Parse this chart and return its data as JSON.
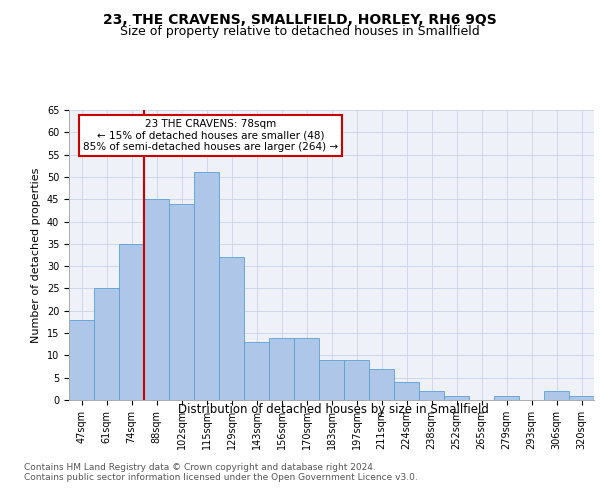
{
  "title": "23, THE CRAVENS, SMALLFIELD, HORLEY, RH6 9QS",
  "subtitle": "Size of property relative to detached houses in Smallfield",
  "xlabel": "Distribution of detached houses by size in Smallfield",
  "ylabel": "Number of detached properties",
  "categories": [
    "47sqm",
    "61sqm",
    "74sqm",
    "88sqm",
    "102sqm",
    "115sqm",
    "129sqm",
    "143sqm",
    "156sqm",
    "170sqm",
    "183sqm",
    "197sqm",
    "211sqm",
    "224sqm",
    "238sqm",
    "252sqm",
    "265sqm",
    "279sqm",
    "293sqm",
    "306sqm",
    "320sqm"
  ],
  "values": [
    18,
    25,
    35,
    45,
    44,
    51,
    32,
    13,
    14,
    14,
    9,
    9,
    7,
    4,
    2,
    1,
    0,
    1,
    0,
    2,
    1
  ],
  "bar_color": "#aec6e8",
  "bar_edgecolor": "#5a9fd4",
  "vline_x_index": 2,
  "vline_color": "#cc0000",
  "annotation_text_line1": "23 THE CRAVENS: 78sqm",
  "annotation_text_line2": "← 15% of detached houses are smaller (48)",
  "annotation_text_line3": "85% of semi-detached houses are larger (264) →",
  "annotation_box_edgecolor": "#cc0000",
  "annotation_box_facecolor": "#ffffff",
  "ylim": [
    0,
    65
  ],
  "yticks": [
    0,
    5,
    10,
    15,
    20,
    25,
    30,
    35,
    40,
    45,
    50,
    55,
    60,
    65
  ],
  "grid_color": "#c8d4e8",
  "background_color": "#eef2f8",
  "footer_line1": "Contains HM Land Registry data © Crown copyright and database right 2024.",
  "footer_line2": "Contains public sector information licensed under the Open Government Licence v3.0.",
  "title_fontsize": 10,
  "subtitle_fontsize": 9,
  "xlabel_fontsize": 8.5,
  "ylabel_fontsize": 8,
  "tick_fontsize": 7,
  "footer_fontsize": 6.5,
  "annotation_fontsize": 7.5
}
